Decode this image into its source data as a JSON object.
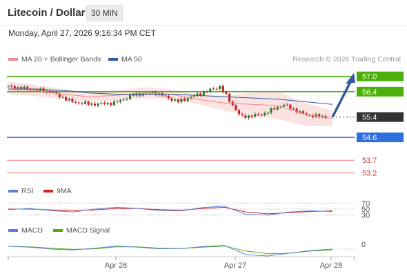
{
  "header": {
    "title": "Litecoin / Dollar",
    "interval": "30 MIN",
    "datetime": "Monday, April 27, 2026 9:16:34 PM CET"
  },
  "legend": {
    "ma20_label": "MA 20 + Bollinger Bands",
    "ma50_label": "MA 50",
    "rsi_label": "RSI",
    "rsi_ma_label": "9MA",
    "macd_label": "MACD",
    "macd_signal_label": "MACD Signal",
    "copyright": "Research © 2026 Trading Central"
  },
  "colors": {
    "ma20": "#f08a8a",
    "ma50": "#2f5b9c",
    "bollinger_fill": "#fbe0e0",
    "candle_up": "#2e7d32",
    "candle_down": "#c62828",
    "resistance": "#4caf0a",
    "support": "#2f6fe0",
    "target_band": "#ef7a82",
    "current": "#333333",
    "rsi": "#5b7fe0",
    "macd": "#5b7fe0",
    "macd_signal": "#4caf0a"
  },
  "chart_data": [
    {
      "type": "candlestick",
      "title": "Litecoin / Dollar",
      "x_ticks": [
        "Apr 26",
        "Apr 27",
        "Apr 28"
      ],
      "ylim": [
        53.0,
        57.4
      ],
      "levels": [
        {
          "label": "57.0",
          "value": 57.0,
          "kind": "resistance"
        },
        {
          "label": "56.4",
          "value": 56.4,
          "kind": "resistance"
        },
        {
          "label": "55.4",
          "value": 55.4,
          "kind": "current"
        },
        {
          "label": "54.6",
          "value": 54.6,
          "kind": "support"
        },
        {
          "label": "53.7",
          "value": 53.7,
          "kind": "target"
        },
        {
          "label": "53.2",
          "value": 53.2,
          "kind": "target"
        }
      ],
      "series": [
        {
          "name": "MA 20 + Bollinger Bands",
          "values": [
            56.55,
            56.45,
            56.3,
            56.2,
            56.25,
            56.35,
            56.3,
            56.1,
            55.95,
            55.9,
            55.85,
            55.5,
            55.35
          ]
        },
        {
          "name": "MA 50",
          "values": [
            56.5,
            56.5,
            56.45,
            56.35,
            56.3,
            56.3,
            56.3,
            56.25,
            56.2,
            56.15,
            56.1,
            56.0,
            55.9
          ]
        }
      ],
      "price_path": [
        56.6,
        56.5,
        56.4,
        56.0,
        55.9,
        55.95,
        56.3,
        56.35,
        56.0,
        56.3,
        56.6,
        55.4,
        55.5,
        55.9,
        55.5,
        55.4
      ],
      "forecast": {
        "from": 55.4,
        "to": 57.0
      }
    },
    {
      "type": "line",
      "name": "RSI",
      "y_ticks": [
        "70",
        "50",
        "30"
      ],
      "ylim": [
        20,
        80
      ],
      "series": [
        {
          "name": "RSI",
          "values": [
            48,
            52,
            45,
            40,
            50,
            56,
            52,
            45,
            44,
            55,
            60,
            32,
            30,
            40,
            44,
            42
          ]
        },
        {
          "name": "9MA",
          "values": [
            50,
            50,
            47,
            44,
            47,
            52,
            52,
            48,
            46,
            52,
            56,
            40,
            34,
            38,
            42,
            44
          ]
        }
      ]
    },
    {
      "type": "line",
      "name": "MACD",
      "y_ticks": [
        "0"
      ],
      "series": [
        {
          "name": "MACD",
          "values": [
            0.05,
            0.02,
            -0.05,
            -0.08,
            -0.02,
            0.06,
            0.02,
            -0.04,
            -0.03,
            0.04,
            0.08,
            -0.25,
            -0.3,
            -0.2,
            -0.1,
            -0.05
          ]
        },
        {
          "name": "MACD Signal",
          "values": [
            0.05,
            0.03,
            -0.02,
            -0.06,
            -0.04,
            0.03,
            0.03,
            -0.02,
            -0.03,
            0.02,
            0.06,
            -0.12,
            -0.22,
            -0.2,
            -0.12,
            -0.08
          ]
        }
      ]
    }
  ]
}
